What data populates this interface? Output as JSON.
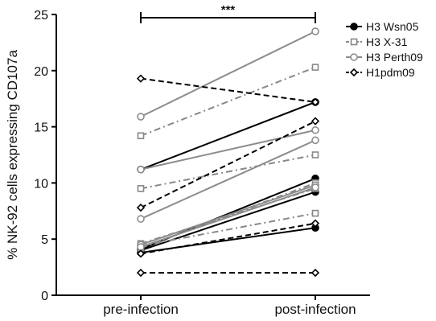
{
  "chart_data": {
    "type": "line",
    "title": "",
    "xlabel": "",
    "ylabel": "% NK-92 cells expressing CD107a",
    "categories": [
      "pre-infection",
      "post-infection"
    ],
    "ylim": [
      0,
      25
    ],
    "yticks": [
      0,
      5,
      10,
      15,
      20,
      25
    ],
    "grid": false,
    "legend_position": "top-right",
    "annotation": "***",
    "series": [
      {
        "name": "H3 Wsn05",
        "color": "#000000",
        "dash": "solid",
        "marker": "circle-filled",
        "pairs": [
          [
            11.2,
            17.2
          ],
          [
            4.1,
            10.4
          ],
          [
            4.0,
            9.2
          ],
          [
            3.8,
            6.0
          ]
        ]
      },
      {
        "name": "H3 X-31",
        "color": "#888888",
        "dash": "dashdot",
        "marker": "square-open",
        "pairs": [
          [
            14.2,
            20.3
          ],
          [
            9.5,
            12.5
          ],
          [
            4.6,
            9.5
          ],
          [
            4.4,
            7.3
          ],
          [
            4.2,
            10.0
          ]
        ]
      },
      {
        "name": "H3 Perth09",
        "color": "#8c8c8c",
        "dash": "solid",
        "marker": "circle-open",
        "pairs": [
          [
            15.9,
            23.5
          ],
          [
            11.2,
            14.7
          ],
          [
            6.8,
            13.8
          ],
          [
            4.5,
            9.8
          ],
          [
            4.3,
            9.6
          ]
        ]
      },
      {
        "name": "H1pdm09",
        "color": "#000000",
        "dash": "dashed",
        "marker": "diamond-open",
        "pairs": [
          [
            19.3,
            17.2
          ],
          [
            7.8,
            15.5
          ],
          [
            3.7,
            6.4
          ],
          [
            2.0,
            2.0
          ]
        ]
      }
    ]
  }
}
